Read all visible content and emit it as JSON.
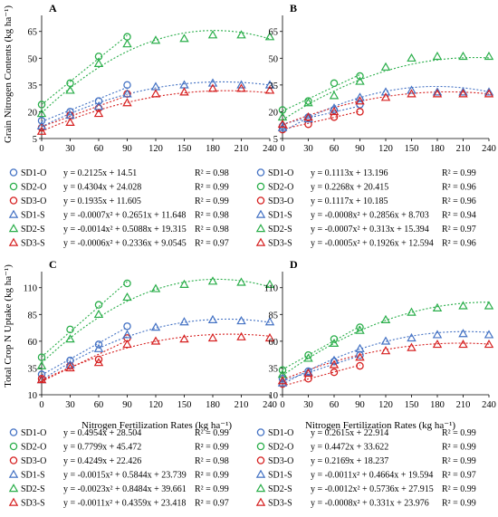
{
  "figure": {
    "xlabel": "Nitrogen Fertilization Rates (kg ha⁻¹)",
    "ylabel_top": "Grain Nitrogen Contents (kg ha⁻¹)",
    "ylabel_bottom": "Total Crop N Uptake (kg ha⁻¹)"
  },
  "colors": {
    "SD1": "#4472c4",
    "SD2": "#2aae4a",
    "SD3": "#d62020"
  },
  "chart_data": [
    {
      "panel": "A",
      "type": "scatter",
      "xticks": [
        0,
        30,
        60,
        90,
        120,
        150,
        180,
        210,
        240
      ],
      "yticks": [
        5,
        20,
        35,
        50,
        65
      ],
      "ylim": [
        5,
        74
      ],
      "xlim": [
        0,
        240
      ],
      "grid": false,
      "series": [
        {
          "name": "SD1-O",
          "marker": "circle",
          "x": [
            0,
            30,
            60,
            90
          ],
          "y": [
            15,
            20,
            26,
            35
          ]
        },
        {
          "name": "SD2-O",
          "marker": "circle",
          "x": [
            0,
            30,
            60,
            90
          ],
          "y": [
            24,
            36,
            51,
            62
          ]
        },
        {
          "name": "SD3-O",
          "marker": "circle",
          "x": [
            0,
            30,
            60,
            90
          ],
          "y": [
            11,
            18,
            22,
            30
          ]
        },
        {
          "name": "SD1-S",
          "marker": "triangle",
          "x": [
            0,
            30,
            60,
            90,
            120,
            150,
            180,
            210,
            240
          ],
          "y": [
            12,
            18,
            23,
            30,
            34,
            35,
            36,
            35,
            35
          ]
        },
        {
          "name": "SD2-S",
          "marker": "triangle",
          "x": [
            0,
            30,
            60,
            90,
            120,
            150,
            180,
            210,
            240
          ],
          "y": [
            19,
            32,
            47,
            58,
            60,
            61,
            63,
            63,
            62
          ]
        },
        {
          "name": "SD3-S",
          "marker": "triangle",
          "x": [
            0,
            30,
            60,
            90,
            120,
            150,
            180,
            210,
            240
          ],
          "y": [
            9,
            14,
            19,
            25,
            30,
            31,
            33,
            33,
            32
          ]
        }
      ],
      "equations": [
        {
          "name": "SD1-O",
          "eq": "y = 0.2125x + 14.51",
          "r2": "R² = 0.98"
        },
        {
          "name": "SD2-O",
          "eq": "y = 0.4304x + 24.028",
          "r2": "R² = 0.99"
        },
        {
          "name": "SD3-O",
          "eq": "y = 0.1935x + 11.605",
          "r2": "R² = 0.99"
        },
        {
          "name": "SD1-S",
          "eq": "y = -0.0007x² + 0.2651x + 11.648",
          "r2": "R² = 0.98"
        },
        {
          "name": "SD2-S",
          "eq": "y = -0.0014x² + 0.5088x + 19.315",
          "r2": "R² = 0.98"
        },
        {
          "name": "SD3-S",
          "eq": "y = -0.0006x² + 0.2336x + 9.0545",
          "r2": "R² = 0.97"
        }
      ]
    },
    {
      "panel": "B",
      "type": "scatter",
      "xticks": [
        0,
        30,
        60,
        90,
        120,
        150,
        180,
        210,
        240
      ],
      "yticks": [
        5,
        20,
        35,
        50,
        65
      ],
      "ylim": [
        5,
        74
      ],
      "xlim": [
        0,
        240
      ],
      "grid": false,
      "series": [
        {
          "name": "SD1-O",
          "marker": "circle",
          "x": [
            0,
            30,
            60,
            90
          ],
          "y": [
            12,
            17,
            21,
            24
          ]
        },
        {
          "name": "SD2-O",
          "marker": "circle",
          "x": [
            0,
            30,
            60,
            90
          ],
          "y": [
            21,
            26,
            36,
            40
          ]
        },
        {
          "name": "SD3-O",
          "marker": "circle",
          "x": [
            0,
            30,
            60,
            90
          ],
          "y": [
            10,
            13,
            17,
            20
          ]
        },
        {
          "name": "SD1-S",
          "marker": "triangle",
          "x": [
            0,
            30,
            60,
            90,
            120,
            150,
            180,
            210,
            240
          ],
          "y": [
            11,
            16,
            22,
            28,
            31,
            32,
            31,
            31,
            31
          ]
        },
        {
          "name": "SD2-S",
          "marker": "triangle",
          "x": [
            0,
            30,
            60,
            90,
            120,
            150,
            180,
            210,
            240
          ],
          "y": [
            17,
            25,
            29,
            37,
            45,
            50,
            51,
            51,
            51
          ]
        },
        {
          "name": "SD3-S",
          "marker": "triangle",
          "x": [
            0,
            30,
            60,
            90,
            120,
            150,
            180,
            210,
            240
          ],
          "y": [
            13,
            17,
            20,
            26,
            28,
            30,
            30,
            30,
            30
          ]
        }
      ],
      "equations": [
        {
          "name": "SD1-O",
          "eq": "y = 0.1113x + 13.196",
          "r2": "R² = 0.99"
        },
        {
          "name": "SD2-O",
          "eq": "y = 0.2268x + 20.415",
          "r2": "R² = 0.96"
        },
        {
          "name": "SD3-O",
          "eq": "y = 0.1117x + 10.185",
          "r2": "R² = 0.96"
        },
        {
          "name": "SD1-S",
          "eq": "y = -0.0008x² + 0.2856x + 8.703",
          "r2": "R² = 0.94"
        },
        {
          "name": "SD2-S",
          "eq": "y = -0.0007x² + 0.313x + 15.394",
          "r2": "R² = 0.97"
        },
        {
          "name": "SD3-S",
          "eq": "y = -0.0005x² + 0.1926x + 12.594",
          "r2": "R² = 0.96"
        }
      ]
    },
    {
      "panel": "C",
      "type": "scatter",
      "xticks": [
        0,
        30,
        60,
        90,
        120,
        150,
        180,
        210,
        240
      ],
      "yticks": [
        10,
        35,
        60,
        85,
        110
      ],
      "ylim": [
        10,
        125
      ],
      "xlim": [
        0,
        240
      ],
      "grid": false,
      "series": [
        {
          "name": "SD1-O",
          "marker": "circle",
          "x": [
            0,
            30,
            60,
            90
          ],
          "y": [
            29,
            42,
            57,
            74
          ]
        },
        {
          "name": "SD2-O",
          "marker": "circle",
          "x": [
            0,
            30,
            60,
            90
          ],
          "y": [
            45,
            71,
            94,
            114
          ]
        },
        {
          "name": "SD3-O",
          "marker": "circle",
          "x": [
            0,
            30,
            60,
            90
          ],
          "y": [
            25,
            37,
            43,
            63
          ]
        },
        {
          "name": "SD1-S",
          "marker": "triangle",
          "x": [
            0,
            30,
            60,
            90,
            120,
            150,
            180,
            210,
            240
          ],
          "y": [
            24,
            38,
            53,
            66,
            73,
            78,
            80,
            79,
            78
          ]
        },
        {
          "name": "SD2-S",
          "marker": "triangle",
          "x": [
            0,
            30,
            60,
            90,
            120,
            150,
            180,
            210,
            240
          ],
          "y": [
            37,
            62,
            85,
            101,
            109,
            113,
            116,
            115,
            113
          ]
        },
        {
          "name": "SD3-S",
          "marker": "triangle",
          "x": [
            0,
            30,
            60,
            90,
            120,
            150,
            180,
            210,
            240
          ],
          "y": [
            24,
            35,
            40,
            57,
            60,
            62,
            63,
            64,
            63
          ]
        }
      ],
      "equations": [
        {
          "name": "SD1-O",
          "eq": "y = 0.4954x + 28.504",
          "r2": "R² = 0.99"
        },
        {
          "name": "SD2-O",
          "eq": "y = 0.7799x + 45.472",
          "r2": "R² = 0.99"
        },
        {
          "name": "SD3-O",
          "eq": "y = 0.4249x + 22.426",
          "r2": "R² = 0.98"
        },
        {
          "name": "SD1-S",
          "eq": "y = -0.0015x² + 0.5844x + 23.739",
          "r2": "R² = 0.99"
        },
        {
          "name": "SD2-S",
          "eq": "y = -0.0023x² + 0.8484x + 39.661",
          "r2": "R² = 0.99"
        },
        {
          "name": "SD3-S",
          "eq": "y = -0.0011x² + 0.4359x + 23.418",
          "r2": "R² = 0.97"
        }
      ]
    },
    {
      "panel": "D",
      "type": "scatter",
      "xticks": [
        0,
        30,
        60,
        90,
        120,
        150,
        180,
        210,
        240
      ],
      "yticks": [
        10,
        35,
        60,
        85,
        110
      ],
      "ylim": [
        10,
        125
      ],
      "xlim": [
        0,
        240
      ],
      "grid": false,
      "series": [
        {
          "name": "SD1-O",
          "marker": "circle",
          "x": [
            0,
            30,
            60,
            90
          ],
          "y": [
            25,
            32,
            41,
            47
          ]
        },
        {
          "name": "SD2-O",
          "marker": "circle",
          "x": [
            0,
            30,
            60,
            90
          ],
          "y": [
            33,
            47,
            62,
            73
          ]
        },
        {
          "name": "SD3-O",
          "marker": "circle",
          "x": [
            0,
            30,
            60,
            90
          ],
          "y": [
            20,
            25,
            31,
            37
          ]
        },
        {
          "name": "SD1-S",
          "marker": "triangle",
          "x": [
            0,
            30,
            60,
            90,
            120,
            150,
            180,
            210,
            240
          ],
          "y": [
            21,
            31,
            42,
            53,
            60,
            63,
            66,
            67,
            66
          ]
        },
        {
          "name": "SD2-S",
          "marker": "triangle",
          "x": [
            0,
            30,
            60,
            90,
            120,
            150,
            180,
            210,
            240
          ],
          "y": [
            29,
            44,
            58,
            70,
            80,
            87,
            91,
            93,
            93
          ]
        },
        {
          "name": "SD3-S",
          "marker": "triangle",
          "x": [
            0,
            30,
            60,
            90,
            120,
            150,
            180,
            210,
            240
          ],
          "y": [
            23,
            30,
            38,
            45,
            51,
            54,
            57,
            57,
            57
          ]
        }
      ],
      "equations": [
        {
          "name": "SD1-O",
          "eq": "y = 0.2615x + 22.914",
          "r2": "R² = 0.99"
        },
        {
          "name": "SD2-O",
          "eq": "y = 0.4472x + 33.622",
          "r2": "R² = 0.99"
        },
        {
          "name": "SD3-O",
          "eq": "y = 0.2169x + 18.237",
          "r2": "R² = 0.99"
        },
        {
          "name": "SD1-S",
          "eq": "y = -0.0011x² + 0.4664x + 19.594",
          "r2": "R² = 0.97"
        },
        {
          "name": "SD2-S",
          "eq": "y = -0.0012x² + 0.5736x + 27.915",
          "r2": "R² = 0.99"
        },
        {
          "name": "SD3-S",
          "eq": "y = -0.0008x² + 0.331x + 23.976",
          "r2": "R² = 0.99"
        }
      ]
    }
  ]
}
